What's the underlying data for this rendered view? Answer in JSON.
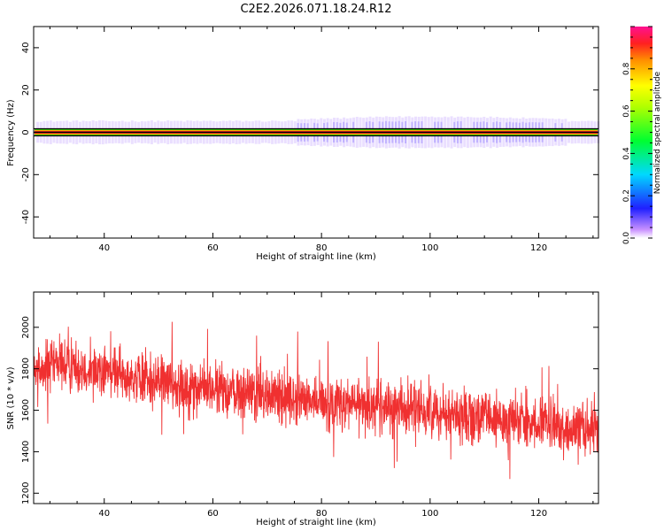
{
  "title": "C2E2.2026.071.18.24.R12",
  "chart_data": [
    {
      "type": "heatmap",
      "xlabel": "Height of straight line (km)",
      "ylabel": "Frequency (Hz)",
      "xlim": [
        27,
        131
      ],
      "ylim": [
        -50,
        50
      ],
      "xticks": [
        "40",
        "60",
        "80",
        "100",
        "120"
      ],
      "yticks": [
        "40",
        "20",
        "0",
        "-20",
        "-40"
      ],
      "colorbar": {
        "label": "Normalized spectral amplitude",
        "range": [
          0,
          1
        ],
        "ticks": [
          "0.0",
          "0.2",
          "0.4",
          "0.6",
          "0.8"
        ]
      },
      "description_of_signal": {
        "center_frequency": 0,
        "core_halfwidth_hz": 1.5,
        "outer_halfwidth_hz": 4,
        "broadening_region_km": [
          75,
          125
        ]
      }
    },
    {
      "type": "line",
      "xlabel": "Height of straight line (km)",
      "ylabel": "SNR (10 * v/v)",
      "xlim": [
        27,
        131
      ],
      "ylim": [
        1150,
        2170
      ],
      "xticks": [
        "40",
        "60",
        "80",
        "100",
        "120"
      ],
      "yticks": [
        "2000",
        "1800",
        "1600",
        "1400",
        "1200"
      ],
      "series": [
        {
          "color": "#f03030",
          "trend_x": [
            27,
            35,
            45,
            60,
            80,
            100,
            115,
            131
          ],
          "trend_y": [
            1800,
            1820,
            1760,
            1700,
            1640,
            1600,
            1540,
            1500
          ],
          "noise_amplitude": 120
        }
      ]
    }
  ]
}
